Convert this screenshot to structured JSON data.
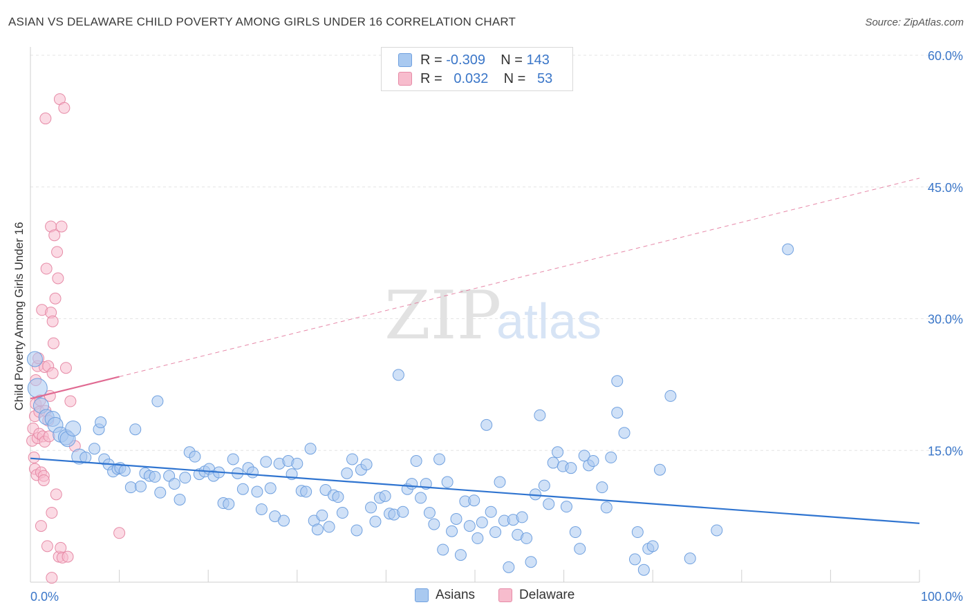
{
  "header": {
    "title": "ASIAN VS DELAWARE CHILD POVERTY AMONG GIRLS UNDER 16 CORRELATION CHART",
    "source": "Source: ZipAtlas.com"
  },
  "legend": {
    "rows": [
      {
        "r_label": "R =",
        "r_value": "-0.309",
        "n_label": "N =",
        "n_value": "143",
        "color": "#a9c9f0",
        "border": "#6fa0df"
      },
      {
        "r_label": "R =",
        "r_value": "0.032",
        "n_label": "N =",
        "n_value": "53",
        "color": "#f7bccd",
        "border": "#e68aa6"
      }
    ],
    "bottom": [
      {
        "label": "Asians",
        "color": "#a9c9f0",
        "border": "#6fa0df"
      },
      {
        "label": "Delaware",
        "color": "#f7bccd",
        "border": "#e68aa6"
      }
    ]
  },
  "watermark": {
    "zip": "ZIP",
    "atlas": "atlas"
  },
  "chart_data": {
    "type": "scatter",
    "title": "ASIAN VS DELAWARE CHILD POVERTY AMONG GIRLS UNDER 16 CORRELATION CHART",
    "xlabel": "",
    "ylabel": "Child Poverty Among Girls Under 16",
    "xlim": [
      0,
      100
    ],
    "ylim": [
      0,
      60
    ],
    "x_tick_labels": [
      "0.0%",
      "100.0%"
    ],
    "y_tick_labels": [
      "15.0%",
      "30.0%",
      "45.0%",
      "60.0%"
    ],
    "y_ticks": [
      15,
      30,
      45,
      60
    ],
    "colors": {
      "asians_fill": "#a9c9f0",
      "asians_stroke": "#6fa0df",
      "asians_line": "#2f74d0",
      "delaware_fill": "#f7bccd",
      "delaware_stroke": "#e68aa6",
      "delaware_line": "#e06a92",
      "axis_text": "#3a76c8"
    },
    "series": [
      {
        "name": "Asians",
        "trend": {
          "x": [
            0,
            100
          ],
          "y": [
            14.1,
            6.7
          ],
          "style": "solid"
        },
        "points": [
          [
            0.5,
            25.4,
            2
          ],
          [
            0.8,
            22.1,
            3
          ],
          [
            1.2,
            20.1,
            2
          ],
          [
            1.8,
            18.8,
            2
          ],
          [
            2.5,
            18.6,
            2
          ],
          [
            2.8,
            17.9,
            2
          ],
          [
            3.4,
            16.8,
            2
          ],
          [
            4.0,
            16.5,
            2
          ],
          [
            4.2,
            16.3,
            2
          ],
          [
            4.8,
            17.5,
            2
          ],
          [
            5.5,
            14.3,
            2
          ],
          [
            6.2,
            14.2,
            1
          ],
          [
            7.2,
            15.2,
            1
          ],
          [
            7.7,
            17.4,
            1
          ],
          [
            7.9,
            18.2,
            1
          ],
          [
            8.3,
            14.0,
            1
          ],
          [
            8.8,
            13.4,
            1
          ],
          [
            9.3,
            12.6,
            1
          ],
          [
            9.8,
            12.9,
            1
          ],
          [
            10.1,
            13.0,
            1
          ],
          [
            10.6,
            12.7,
            1
          ],
          [
            11.3,
            10.8,
            1
          ],
          [
            11.8,
            17.4,
            1
          ],
          [
            12.4,
            10.9,
            1
          ],
          [
            12.9,
            12.4,
            1
          ],
          [
            13.4,
            12.1,
            1
          ],
          [
            14.0,
            12.0,
            1
          ],
          [
            14.6,
            10.2,
            1
          ],
          [
            14.3,
            20.6,
            1
          ],
          [
            15.6,
            12.1,
            1
          ],
          [
            16.2,
            11.2,
            1
          ],
          [
            16.8,
            9.4,
            1
          ],
          [
            17.4,
            11.9,
            1
          ],
          [
            17.9,
            14.8,
            1
          ],
          [
            18.5,
            14.3,
            1
          ],
          [
            19.0,
            12.3,
            1
          ],
          [
            19.6,
            12.6,
            1
          ],
          [
            20.1,
            12.9,
            1
          ],
          [
            20.6,
            12.1,
            1
          ],
          [
            21.2,
            12.5,
            1
          ],
          [
            21.7,
            9.0,
            1
          ],
          [
            22.3,
            8.9,
            1
          ],
          [
            22.8,
            14.0,
            1
          ],
          [
            23.3,
            12.4,
            1
          ],
          [
            23.9,
            10.6,
            1
          ],
          [
            24.5,
            13.0,
            1
          ],
          [
            25.0,
            12.5,
            1
          ],
          [
            25.5,
            10.3,
            1
          ],
          [
            26.0,
            8.3,
            1
          ],
          [
            26.5,
            13.7,
            1
          ],
          [
            27.0,
            10.7,
            1
          ],
          [
            27.5,
            7.5,
            1
          ],
          [
            28.0,
            13.5,
            1
          ],
          [
            28.5,
            7.0,
            1
          ],
          [
            29.0,
            13.8,
            1
          ],
          [
            29.4,
            12.3,
            1
          ],
          [
            30.0,
            13.5,
            1
          ],
          [
            30.5,
            10.4,
            1
          ],
          [
            31.0,
            10.3,
            1
          ],
          [
            31.5,
            15.2,
            1
          ],
          [
            31.9,
            7.0,
            1
          ],
          [
            32.3,
            6.0,
            1
          ],
          [
            32.8,
            7.6,
            1
          ],
          [
            33.2,
            10.5,
            1
          ],
          [
            33.6,
            6.3,
            1
          ],
          [
            34.1,
            9.9,
            1
          ],
          [
            34.6,
            9.7,
            1
          ],
          [
            35.1,
            7.9,
            1
          ],
          [
            35.6,
            12.4,
            1
          ],
          [
            36.2,
            14.0,
            1
          ],
          [
            36.7,
            5.9,
            1
          ],
          [
            37.2,
            12.8,
            1
          ],
          [
            37.8,
            13.4,
            1
          ],
          [
            38.3,
            8.5,
            1
          ],
          [
            38.8,
            6.9,
            1
          ],
          [
            39.3,
            9.6,
            1
          ],
          [
            39.9,
            9.8,
            1
          ],
          [
            40.4,
            7.8,
            1
          ],
          [
            40.9,
            7.7,
            1
          ],
          [
            41.4,
            23.6,
            1
          ],
          [
            41.9,
            8.0,
            1
          ],
          [
            42.4,
            10.6,
            1
          ],
          [
            42.9,
            11.2,
            1
          ],
          [
            43.4,
            13.8,
            1
          ],
          [
            43.9,
            9.6,
            1
          ],
          [
            44.5,
            11.2,
            1
          ],
          [
            44.9,
            7.9,
            1
          ],
          [
            45.4,
            6.6,
            1
          ],
          [
            46.0,
            14.0,
            1
          ],
          [
            46.4,
            3.7,
            1
          ],
          [
            46.9,
            11.4,
            1
          ],
          [
            47.4,
            5.8,
            1
          ],
          [
            47.9,
            7.2,
            1
          ],
          [
            48.4,
            3.1,
            1
          ],
          [
            48.9,
            9.2,
            1
          ],
          [
            49.4,
            6.4,
            1
          ],
          [
            49.9,
            9.3,
            1
          ],
          [
            50.3,
            5.0,
            1
          ],
          [
            50.8,
            6.8,
            1
          ],
          [
            51.3,
            17.9,
            1
          ],
          [
            51.8,
            8.0,
            1
          ],
          [
            52.3,
            5.7,
            1
          ],
          [
            52.8,
            11.4,
            1
          ],
          [
            53.3,
            7.0,
            1
          ],
          [
            53.8,
            1.7,
            1
          ],
          [
            54.3,
            7.1,
            1
          ],
          [
            54.8,
            5.4,
            1
          ],
          [
            55.3,
            7.4,
            1
          ],
          [
            55.8,
            5.0,
            1
          ],
          [
            56.3,
            2.3,
            1
          ],
          [
            56.8,
            10.0,
            1
          ],
          [
            57.3,
            19.0,
            1
          ],
          [
            57.8,
            11.0,
            1
          ],
          [
            58.3,
            8.9,
            1
          ],
          [
            58.8,
            13.6,
            1
          ],
          [
            59.3,
            14.8,
            1
          ],
          [
            59.9,
            13.2,
            1
          ],
          [
            60.3,
            8.6,
            1
          ],
          [
            60.8,
            13.0,
            1
          ],
          [
            61.3,
            5.7,
            1
          ],
          [
            61.8,
            3.8,
            1
          ],
          [
            62.3,
            14.4,
            1
          ],
          [
            62.8,
            13.3,
            1
          ],
          [
            63.3,
            13.8,
            1
          ],
          [
            64.3,
            10.8,
            1
          ],
          [
            64.8,
            8.5,
            1
          ],
          [
            65.3,
            14.2,
            1
          ],
          [
            66.0,
            22.9,
            1
          ],
          [
            66.0,
            19.3,
            1
          ],
          [
            66.8,
            17.0,
            1
          ],
          [
            68.0,
            2.6,
            1
          ],
          [
            68.3,
            5.7,
            1
          ],
          [
            69.0,
            1.4,
            1
          ],
          [
            69.5,
            3.8,
            1
          ],
          [
            70.0,
            4.1,
            1
          ],
          [
            70.8,
            12.8,
            1
          ],
          [
            72.0,
            21.2,
            1
          ],
          [
            74.2,
            2.7,
            1
          ],
          [
            77.2,
            5.9,
            1
          ],
          [
            85.2,
            37.9,
            1
          ]
        ]
      },
      {
        "name": "Delaware",
        "trend": {
          "x": [
            0,
            10
          ],
          "y": [
            20.9,
            23.4
          ],
          "style": "solid",
          "extended": {
            "x": [
              10,
              100
            ],
            "y": [
              23.4,
              46.0
            ],
            "style": "dashed"
          }
        },
        "points": [
          [
            0.2,
            16.1,
            1
          ],
          [
            0.3,
            17.5,
            1
          ],
          [
            0.4,
            14.2,
            1
          ],
          [
            0.5,
            12.9,
            1
          ],
          [
            0.5,
            18.9,
            1
          ],
          [
            0.6,
            20.3,
            1
          ],
          [
            0.6,
            23.0,
            1
          ],
          [
            0.7,
            12.2,
            1
          ],
          [
            0.8,
            24.6,
            1
          ],
          [
            0.8,
            16.4,
            1
          ],
          [
            0.9,
            25.5,
            1
          ],
          [
            1.0,
            16.9,
            1
          ],
          [
            1.0,
            19.4,
            1
          ],
          [
            1.1,
            20.7,
            1
          ],
          [
            1.2,
            12.5,
            1
          ],
          [
            1.2,
            6.4,
            1
          ],
          [
            1.3,
            31.0,
            1
          ],
          [
            1.4,
            16.6,
            1
          ],
          [
            1.5,
            12.1,
            1
          ],
          [
            1.5,
            11.6,
            1
          ],
          [
            1.6,
            24.5,
            1
          ],
          [
            1.6,
            16.0,
            1
          ],
          [
            1.7,
            19.5,
            1
          ],
          [
            1.7,
            52.8,
            1
          ],
          [
            1.8,
            35.7,
            1
          ],
          [
            1.9,
            4.1,
            1
          ],
          [
            2.0,
            24.6,
            1
          ],
          [
            2.0,
            18.4,
            1
          ],
          [
            2.1,
            16.6,
            1
          ],
          [
            2.2,
            21.2,
            1
          ],
          [
            2.3,
            40.5,
            1
          ],
          [
            2.3,
            30.7,
            1
          ],
          [
            2.4,
            0.5,
            1
          ],
          [
            2.4,
            7.9,
            1
          ],
          [
            2.5,
            29.7,
            1
          ],
          [
            2.5,
            23.8,
            1
          ],
          [
            2.6,
            27.2,
            1
          ],
          [
            2.7,
            39.5,
            1
          ],
          [
            2.8,
            32.3,
            1
          ],
          [
            2.9,
            10.0,
            1
          ],
          [
            3.0,
            37.6,
            1
          ],
          [
            3.1,
            34.6,
            1
          ],
          [
            3.2,
            2.9,
            1
          ],
          [
            3.3,
            55.0,
            1
          ],
          [
            3.4,
            3.9,
            1
          ],
          [
            3.5,
            40.5,
            1
          ],
          [
            3.6,
            2.8,
            1
          ],
          [
            3.8,
            54.0,
            1
          ],
          [
            4.0,
            24.4,
            1
          ],
          [
            4.2,
            2.9,
            1
          ],
          [
            4.5,
            20.6,
            1
          ],
          [
            5.0,
            15.5,
            1
          ],
          [
            10.0,
            5.6,
            1
          ]
        ]
      }
    ]
  }
}
